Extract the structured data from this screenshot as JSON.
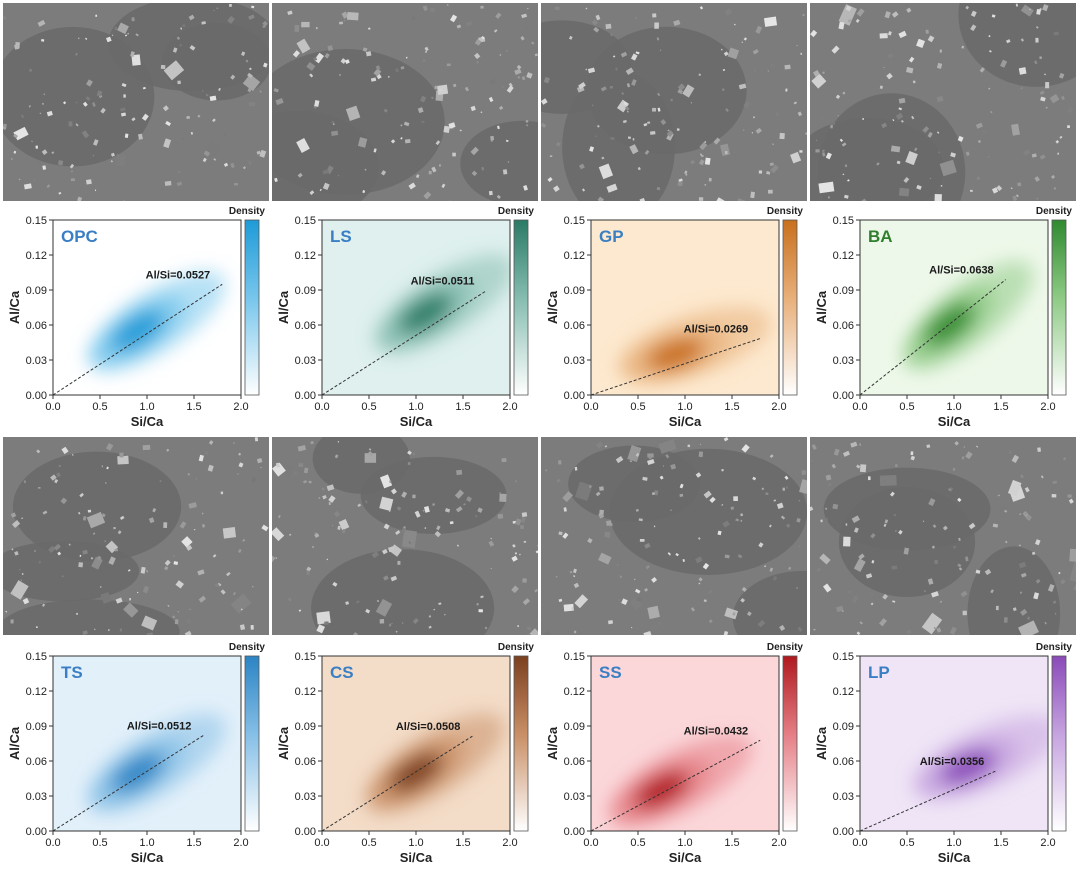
{
  "figure": {
    "axis_labels": {
      "x": "Si/Ca",
      "y": "Al/Ca"
    },
    "colorbar_label": "Density",
    "ratio_prefix": "Al/Si="
  },
  "chart_data": [
    {
      "type": "heatmap",
      "sample": "OPC",
      "ratio_text": "Al/Si=0.0527",
      "slope": 0.0527,
      "line_x": [
        0.0,
        1.8
      ],
      "xlim": [
        0.0,
        2.0
      ],
      "ylim": [
        0.0,
        0.15
      ],
      "xticks": [
        "0.0",
        "0.5",
        "1.0",
        "1.5",
        "2.0"
      ],
      "yticks": [
        "0.00",
        "0.03",
        "0.06",
        "0.09",
        "0.12",
        "0.15"
      ],
      "xlabel": "Si/Ca",
      "ylabel": "Al/Ca",
      "colorbar": "Density",
      "hot_color": "#1e9bd7",
      "mid_color": "#78c6ec",
      "bg_color": "#ffffff",
      "label_color": "#3a7fc4",
      "density_peak": {
        "x": 0.9,
        "y": 0.055
      }
    },
    {
      "type": "heatmap",
      "sample": "LS",
      "ratio_text": "Al/Si=0.0511",
      "slope": 0.0511,
      "line_x": [
        0.0,
        1.75
      ],
      "xlim": [
        0.0,
        2.0
      ],
      "ylim": [
        0.0,
        0.15
      ],
      "xticks": [
        "0.0",
        "0.5",
        "1.0",
        "1.5",
        "2.0"
      ],
      "yticks": [
        "0.00",
        "0.03",
        "0.06",
        "0.09",
        "0.12",
        "0.15"
      ],
      "xlabel": "Si/Ca",
      "ylabel": "Al/Ca",
      "colorbar": "Density",
      "hot_color": "#2a7a66",
      "mid_color": "#86bdb0",
      "bg_color": "#dff0ee",
      "label_color": "#3a7fc4",
      "density_peak": {
        "x": 1.1,
        "y": 0.07
      }
    },
    {
      "type": "heatmap",
      "sample": "GP",
      "ratio_text": "Al/Si=0.0269",
      "slope": 0.0269,
      "line_x": [
        0.0,
        1.8
      ],
      "xlim": [
        0.0,
        2.0
      ],
      "ylim": [
        0.0,
        0.15
      ],
      "xticks": [
        "0.0",
        "0.5",
        "1.0",
        "1.5",
        "2.0"
      ],
      "yticks": [
        "0.00",
        "0.03",
        "0.06",
        "0.09",
        "0.12",
        "0.15"
      ],
      "xlabel": "Si/Ca",
      "ylabel": "Al/Ca",
      "colorbar": "Density",
      "hot_color": "#c8701e",
      "mid_color": "#e8b07a",
      "bg_color": "#fde9cf",
      "label_color": "#3a7fc4",
      "density_peak": {
        "x": 0.9,
        "y": 0.035
      }
    },
    {
      "type": "heatmap",
      "sample": "BA",
      "ratio_text": "Al/Si=0.0638",
      "slope": 0.0638,
      "line_x": [
        0.0,
        1.55
      ],
      "xlim": [
        0.0,
        2.0
      ],
      "ylim": [
        0.0,
        0.15
      ],
      "xticks": [
        "0.0",
        "0.5",
        "1.0",
        "1.5",
        "2.0"
      ],
      "yticks": [
        "0.00",
        "0.03",
        "0.06",
        "0.09",
        "0.12",
        "0.15"
      ],
      "xlabel": "Si/Ca",
      "ylabel": "Al/Ca",
      "colorbar": "Density",
      "hot_color": "#2f8a2f",
      "mid_color": "#8fcb86",
      "bg_color": "#eef8ea",
      "label_color": "#2f7f2f",
      "density_peak": {
        "x": 0.95,
        "y": 0.06
      }
    },
    {
      "type": "heatmap",
      "sample": "TS",
      "ratio_text": "Al/Si=0.0512",
      "slope": 0.0512,
      "line_x": [
        0.0,
        1.6
      ],
      "xlim": [
        0.0,
        2.0
      ],
      "ylim": [
        0.0,
        0.15
      ],
      "xticks": [
        "0.0",
        "0.5",
        "1.0",
        "1.5",
        "2.0"
      ],
      "yticks": [
        "0.00",
        "0.03",
        "0.06",
        "0.09",
        "0.12",
        "0.15"
      ],
      "xlabel": "Si/Ca",
      "ylabel": "Al/Ca",
      "colorbar": "Density",
      "hot_color": "#2b84c4",
      "mid_color": "#86bfe6",
      "bg_color": "#e2f0fa",
      "label_color": "#3a7fc4",
      "density_peak": {
        "x": 0.9,
        "y": 0.05
      }
    },
    {
      "type": "heatmap",
      "sample": "CS",
      "ratio_text": "Al/Si=0.0508",
      "slope": 0.0508,
      "line_x": [
        0.0,
        1.6
      ],
      "xlim": [
        0.0,
        2.0
      ],
      "ylim": [
        0.0,
        0.15
      ],
      "xticks": [
        "0.0",
        "0.5",
        "1.0",
        "1.5",
        "2.0"
      ],
      "yticks": [
        "0.00",
        "0.03",
        "0.06",
        "0.09",
        "0.12",
        "0.15"
      ],
      "xlabel": "Si/Ca",
      "ylabel": "Al/Ca",
      "colorbar": "Density",
      "hot_color": "#7a3f1e",
      "mid_color": "#c98f66",
      "bg_color": "#f3dcc8",
      "label_color": "#3a7fc4",
      "density_peak": {
        "x": 1.0,
        "y": 0.05
      }
    },
    {
      "type": "heatmap",
      "sample": "SS",
      "ratio_text": "Al/Si=0.0432",
      "slope": 0.0432,
      "line_x": [
        0.0,
        1.8
      ],
      "xlim": [
        0.0,
        2.0
      ],
      "ylim": [
        0.0,
        0.15
      ],
      "xticks": [
        "0.0",
        "0.5",
        "1.0",
        "1.5",
        "2.0"
      ],
      "yticks": [
        "0.00",
        "0.03",
        "0.06",
        "0.09",
        "0.12",
        "0.15"
      ],
      "xlabel": "Si/Ca",
      "ylabel": "Al/Ca",
      "colorbar": "Density",
      "hot_color": "#b0181e",
      "mid_color": "#e57f86",
      "bg_color": "#fbd7da",
      "label_color": "#3a7fc4",
      "density_peak": {
        "x": 0.75,
        "y": 0.035
      }
    },
    {
      "type": "heatmap",
      "sample": "LP",
      "ratio_text": "Al/Si=0.0356",
      "slope": 0.0356,
      "line_x": [
        0.0,
        1.45
      ],
      "xlim": [
        0.0,
        2.0
      ],
      "ylim": [
        0.0,
        0.15
      ],
      "xticks": [
        "0.0",
        "0.5",
        "1.0",
        "1.5",
        "2.0"
      ],
      "yticks": [
        "0.00",
        "0.03",
        "0.06",
        "0.09",
        "0.12",
        "0.15"
      ],
      "xlabel": "Si/Ca",
      "ylabel": "Al/Ca",
      "colorbar": "Density",
      "hot_color": "#8a4ab8",
      "mid_color": "#c6a4e0",
      "bg_color": "#efe5f6",
      "label_color": "#3a7fc4",
      "density_peak": {
        "x": 1.15,
        "y": 0.055
      }
    }
  ]
}
